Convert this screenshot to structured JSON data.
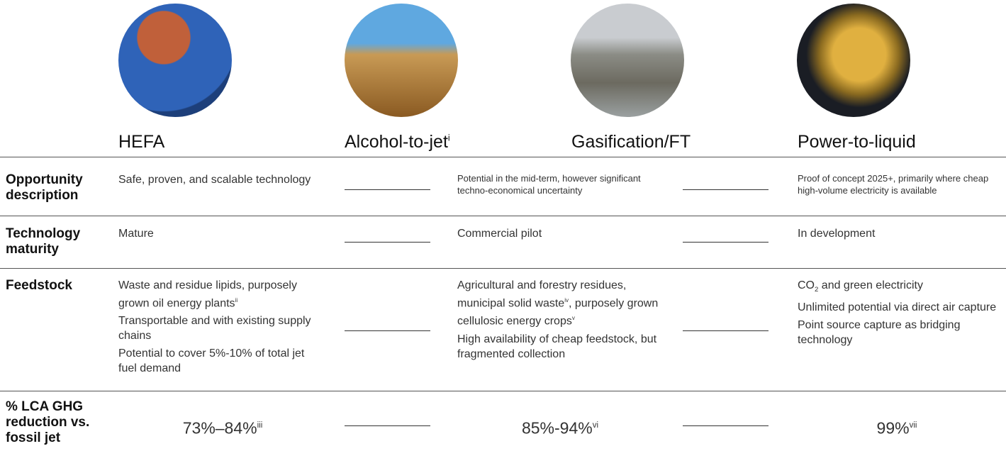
{
  "columns": [
    {
      "name": "HEFA"
    },
    {
      "name": "Alcohol-to-jet",
      "sup": "i"
    },
    {
      "name": "Gasification/FT"
    },
    {
      "name": "Power-to-liquid"
    }
  ],
  "rows": [
    {
      "label": "Opportunity description",
      "hefa": [
        [
          {
            "text": "Safe, proven, and scalable technology"
          }
        ]
      ],
      "gasification": [
        [
          {
            "text": "Potential in the mid-term, however significant techno-economical uncertainty"
          }
        ]
      ],
      "power": [
        [
          {
            "text": "Proof of concept 2025+, primarily where cheap high-volume electricity is available"
          }
        ]
      ]
    },
    {
      "label": "Technology maturity",
      "hefa": [
        [
          {
            "text": "Mature"
          }
        ]
      ],
      "gasification": [
        [
          {
            "text": "Commercial pilot"
          }
        ]
      ],
      "power": [
        [
          {
            "text": "In development"
          }
        ]
      ]
    },
    {
      "label": "Feedstock",
      "hefa": [
        [
          {
            "text": "Waste and residue lipids, purposely grown oil energy plants",
            "sup": "ii"
          }
        ],
        [
          {
            "text": "Transportable and with existing supply chains"
          }
        ],
        [
          {
            "text": "Potential to cover 5%-10% of total jet fuel demand"
          }
        ]
      ],
      "gasification": [
        [
          {
            "text": "Agricultural and forestry residues, municipal solid waste",
            "sup": "iv"
          },
          {
            "text": ", purposely grown cellulosic energy crops",
            "sup": "v"
          }
        ],
        [
          {
            "text": "High availability of cheap feedstock, but fragmented collection"
          }
        ]
      ],
      "power": [
        [
          {
            "text": "CO",
            "sub": "2"
          },
          {
            "text": " and green electricity"
          }
        ],
        [
          {
            "text": "Unlimited potential via direct air capture"
          }
        ],
        [
          {
            "text": "Point source capture as bridging technology"
          }
        ]
      ]
    },
    {
      "label": "% LCA GHG reduction vs. fossil jet",
      "hefa": [
        [
          {
            "text": "73%–84%",
            "sup": "iii"
          }
        ]
      ],
      "gasification": [
        [
          {
            "text": "85%-94%",
            "sup": "vi"
          }
        ]
      ],
      "power": [
        [
          {
            "text": "99%",
            "sup": "vii"
          }
        ]
      ]
    }
  ]
}
